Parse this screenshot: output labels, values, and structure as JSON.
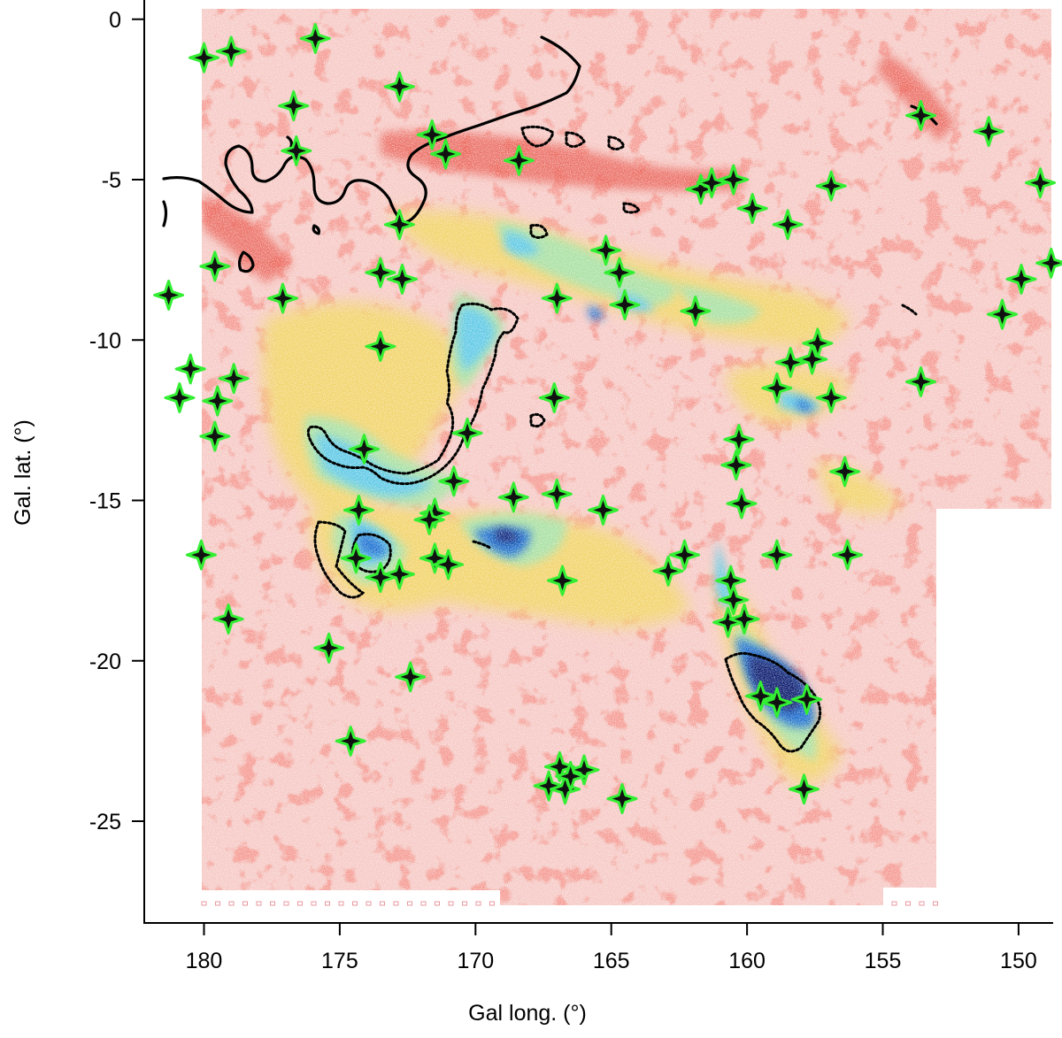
{
  "chart_data": {
    "type": "scatter",
    "title": "",
    "xlabel": "Gal long. (°)",
    "ylabel": "Gal. lat. (°)",
    "x_reversed": true,
    "xlim": [
      182.2,
      148.4
    ],
    "ylim": [
      -28.2,
      0.6
    ],
    "x_ticks": [
      180,
      175,
      170,
      165,
      160,
      155,
      150
    ],
    "y_ticks": [
      0,
      -5,
      -10,
      -15,
      -20,
      -25
    ],
    "x_tick_labels": [
      "180",
      "175",
      "170",
      "165",
      "160",
      "155",
      "150"
    ],
    "y_tick_labels": [
      "0",
      "-5",
      "-10",
      "-15",
      "-20",
      "-25"
    ],
    "grid": false,
    "background_map": "column-density image: pale pink/red low values, yellow-green intermediate, cyan-blue high, dark navy peaks",
    "map_colors": {
      "low": "#f6c9c5",
      "mid": "#e8554a",
      "intermediate": "#f2d36b",
      "green": "#a9e0a2",
      "cyan": "#5fc9e6",
      "blue": "#1d6fd1",
      "peak": "#0a1a6e"
    },
    "marker_style": {
      "shape": "four-point star",
      "fill": "#111111",
      "outline": "#33ee33"
    },
    "contour_solid_color": "#000000",
    "contour_dotted_color": "#000000",
    "markers": [
      {
        "l": 180.0,
        "b": -1.2
      },
      {
        "l": 179.0,
        "b": -1.0
      },
      {
        "l": 175.9,
        "b": -0.6
      },
      {
        "l": 176.7,
        "b": -2.7
      },
      {
        "l": 172.8,
        "b": -2.1
      },
      {
        "l": 176.6,
        "b": -4.1
      },
      {
        "l": 171.6,
        "b": -3.6
      },
      {
        "l": 171.1,
        "b": -4.2
      },
      {
        "l": 168.4,
        "b": -4.4
      },
      {
        "l": 172.8,
        "b": -6.4
      },
      {
        "l": 179.6,
        "b": -7.7
      },
      {
        "l": 173.5,
        "b": -7.9
      },
      {
        "l": 172.7,
        "b": -8.1
      },
      {
        "l": 177.1,
        "b": -8.7
      },
      {
        "l": 181.3,
        "b": -8.6
      },
      {
        "l": 173.5,
        "b": -10.2
      },
      {
        "l": 180.5,
        "b": -10.9
      },
      {
        "l": 178.9,
        "b": -11.2
      },
      {
        "l": 180.9,
        "b": -11.8
      },
      {
        "l": 179.5,
        "b": -11.9
      },
      {
        "l": 179.6,
        "b": -13.0
      },
      {
        "l": 174.1,
        "b": -13.4
      },
      {
        "l": 170.3,
        "b": -12.9
      },
      {
        "l": 167.1,
        "b": -11.8
      },
      {
        "l": 165.2,
        "b": -7.2
      },
      {
        "l": 164.7,
        "b": -7.9
      },
      {
        "l": 164.5,
        "b": -8.9
      },
      {
        "l": 167.0,
        "b": -8.7
      },
      {
        "l": 161.9,
        "b": -9.1
      },
      {
        "l": 161.7,
        "b": -5.3
      },
      {
        "l": 161.3,
        "b": -5.1
      },
      {
        "l": 160.5,
        "b": -5.0
      },
      {
        "l": 159.8,
        "b": -5.9
      },
      {
        "l": 158.5,
        "b": -6.4
      },
      {
        "l": 156.9,
        "b": -5.2
      },
      {
        "l": 153.6,
        "b": -3.0
      },
      {
        "l": 151.1,
        "b": -3.5
      },
      {
        "l": 149.2,
        "b": -5.1
      },
      {
        "l": 148.8,
        "b": -7.6
      },
      {
        "l": 149.9,
        "b": -8.1
      },
      {
        "l": 150.6,
        "b": -9.2
      },
      {
        "l": 157.4,
        "b": -10.1
      },
      {
        "l": 158.4,
        "b": -10.7
      },
      {
        "l": 157.6,
        "b": -10.6
      },
      {
        "l": 158.9,
        "b": -11.5
      },
      {
        "l": 156.9,
        "b": -11.8
      },
      {
        "l": 153.6,
        "b": -11.3
      },
      {
        "l": 156.4,
        "b": -14.1
      },
      {
        "l": 160.3,
        "b": -13.1
      },
      {
        "l": 160.4,
        "b": -13.9
      },
      {
        "l": 160.2,
        "b": -15.1
      },
      {
        "l": 170.8,
        "b": -14.4
      },
      {
        "l": 168.6,
        "b": -14.9
      },
      {
        "l": 167.0,
        "b": -14.8
      },
      {
        "l": 165.3,
        "b": -15.3
      },
      {
        "l": 171.5,
        "b": -15.4
      },
      {
        "l": 171.7,
        "b": -15.6
      },
      {
        "l": 174.3,
        "b": -15.3
      },
      {
        "l": 174.4,
        "b": -16.8
      },
      {
        "l": 173.5,
        "b": -17.4
      },
      {
        "l": 172.8,
        "b": -17.3
      },
      {
        "l": 171.5,
        "b": -16.8
      },
      {
        "l": 171.0,
        "b": -17.0
      },
      {
        "l": 166.8,
        "b": -17.5
      },
      {
        "l": 162.9,
        "b": -17.2
      },
      {
        "l": 162.3,
        "b": -16.7
      },
      {
        "l": 160.6,
        "b": -17.5
      },
      {
        "l": 160.5,
        "b": -18.1
      },
      {
        "l": 160.7,
        "b": -18.8
      },
      {
        "l": 160.1,
        "b": -18.7
      },
      {
        "l": 158.9,
        "b": -16.7
      },
      {
        "l": 156.3,
        "b": -16.7
      },
      {
        "l": 180.1,
        "b": -16.7
      },
      {
        "l": 179.1,
        "b": -18.7
      },
      {
        "l": 175.4,
        "b": -19.6
      },
      {
        "l": 172.4,
        "b": -20.5
      },
      {
        "l": 174.6,
        "b": -22.5
      },
      {
        "l": 159.5,
        "b": -21.1
      },
      {
        "l": 158.9,
        "b": -21.3
      },
      {
        "l": 157.8,
        "b": -21.2
      },
      {
        "l": 157.9,
        "b": -24.0
      },
      {
        "l": 167.3,
        "b": -23.9
      },
      {
        "l": 166.9,
        "b": -23.3
      },
      {
        "l": 166.7,
        "b": -24.0
      },
      {
        "l": 166.0,
        "b": -23.4
      },
      {
        "l": 166.5,
        "b": -23.6
      },
      {
        "l": 164.6,
        "b": -24.3
      }
    ]
  }
}
